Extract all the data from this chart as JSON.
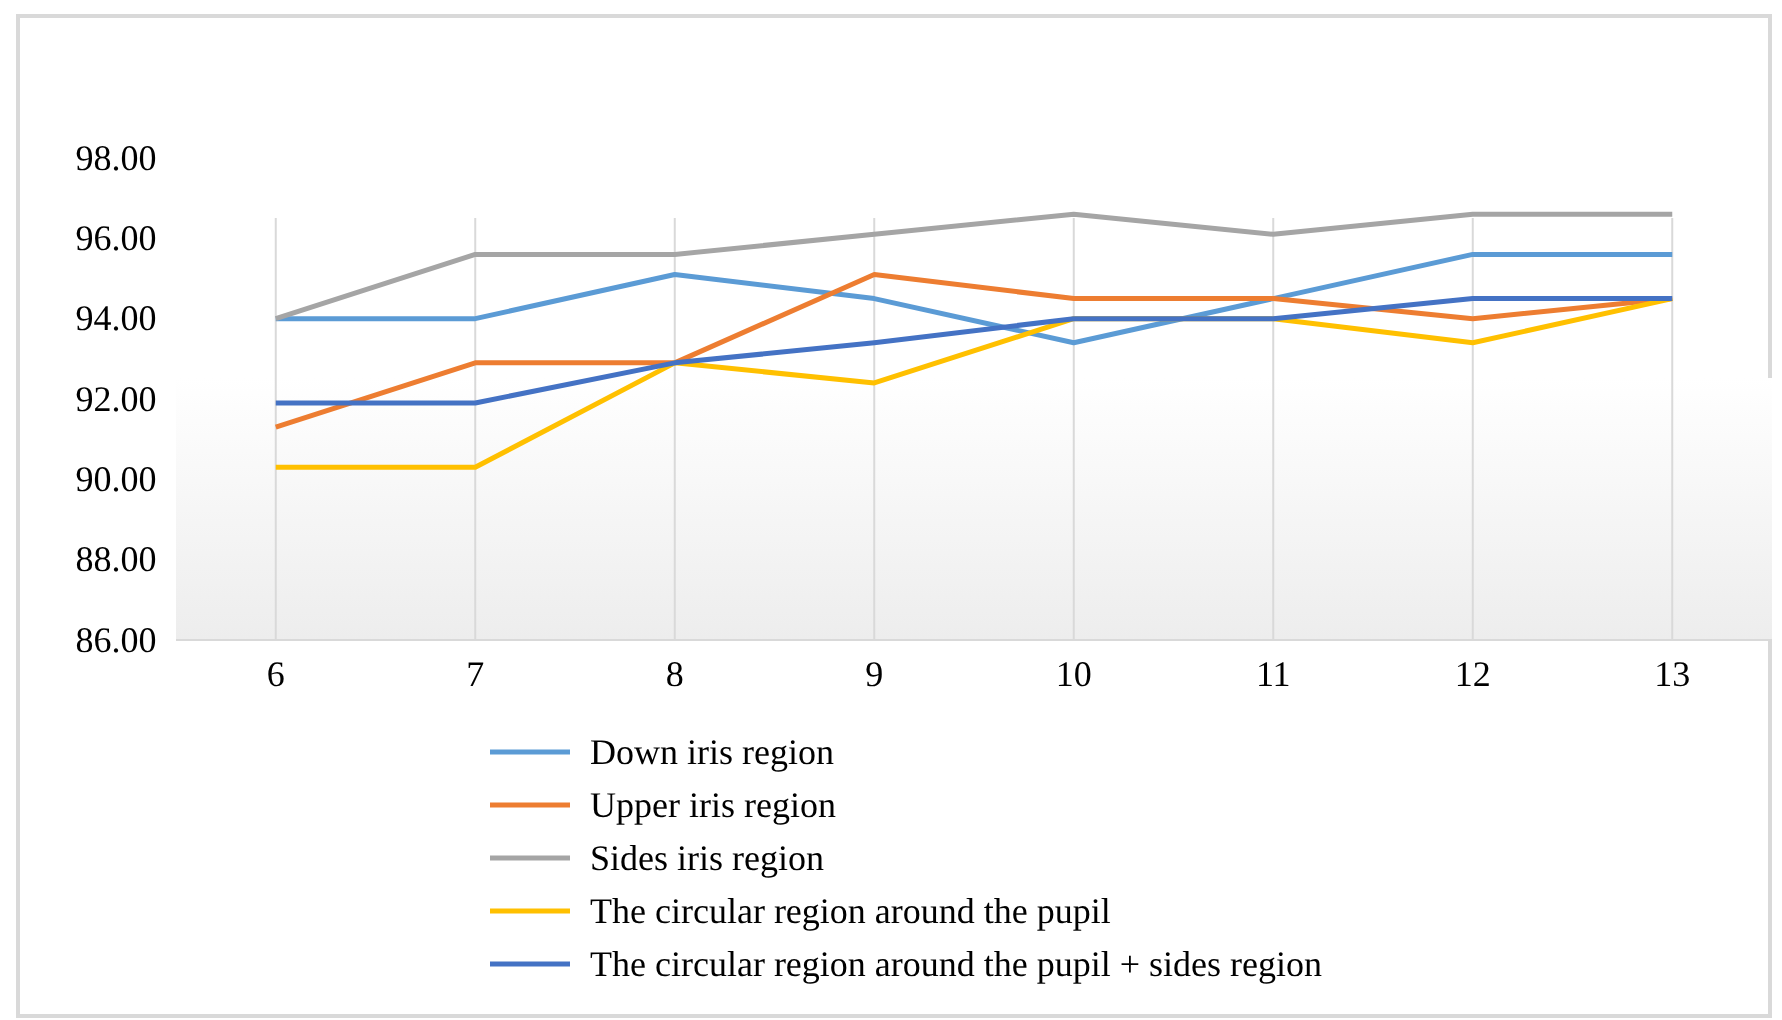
{
  "chart_data": {
    "type": "line",
    "categories": [
      "6",
      "7",
      "8",
      "9",
      "10",
      "11",
      "12",
      "13"
    ],
    "ylim": [
      86,
      98
    ],
    "yticks": [
      {
        "value": 86,
        "label": "86.00"
      },
      {
        "value": 88,
        "label": "88.00"
      },
      {
        "value": 90,
        "label": "90.00"
      },
      {
        "value": 92,
        "label": "92.00"
      },
      {
        "value": 94,
        "label": "94.00"
      },
      {
        "value": 96,
        "label": "96.00"
      },
      {
        "value": 98,
        "label": "98.00"
      }
    ],
    "grid": "x",
    "legend": "bottom",
    "marker": "none",
    "line_style": "solid",
    "series": [
      {
        "name": "Down iris region",
        "color": "#5b9bd5",
        "values": [
          94,
          94,
          95.1,
          94.5,
          93.4,
          94.5,
          95.6,
          95.6
        ]
      },
      {
        "name": "Upper iris region",
        "color": "#ed7d31",
        "values": [
          91.3,
          92.9,
          92.9,
          95.1,
          94.5,
          94.5,
          94,
          94.5
        ]
      },
      {
        "name": "Sides iris region",
        "color": "#a5a5a5",
        "values": [
          94,
          95.6,
          95.6,
          96.1,
          96.6,
          96.1,
          96.6,
          96.6
        ]
      },
      {
        "name": "The circular region around the pupil",
        "color": "#ffc000",
        "values": [
          90.3,
          90.3,
          92.9,
          92.4,
          94,
          94,
          93.4,
          94.5
        ]
      },
      {
        "name": "The circular region around the pupil + sides region",
        "color": "#4472c4",
        "values": [
          91.9,
          91.9,
          92.9,
          93.4,
          94,
          94,
          94.5,
          94.5
        ]
      }
    ]
  }
}
